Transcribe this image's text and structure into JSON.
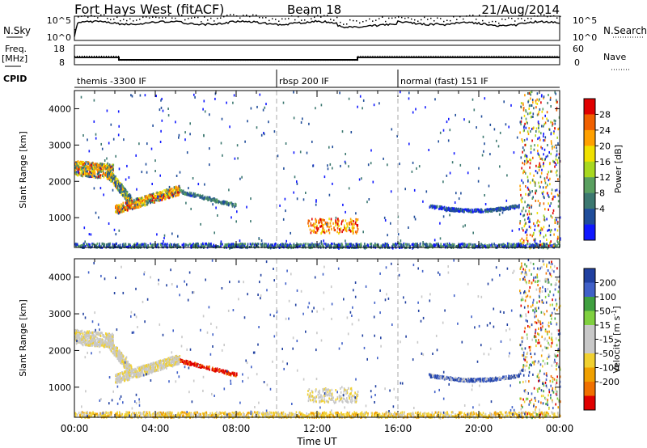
{
  "header": {
    "station": "Fort Hays West (fitACF)",
    "beam": "Beam 18",
    "date": "21/Aug/2014"
  },
  "chart_data": [
    {
      "type": "line",
      "panel": "noise",
      "left_label": "N.Sky",
      "right_label": "N.Search",
      "left_ticks": [
        "10^5",
        "10^0"
      ],
      "right_ticks": [
        "10^5",
        "10^0"
      ]
    },
    {
      "type": "line",
      "panel": "frequency",
      "left_label_top": "Freq.",
      "left_label_bottom": "[MHz]",
      "right_label": "Nave",
      "left_ticks": [
        18,
        8
      ],
      "right_ticks": [
        60,
        0
      ],
      "series": [
        {
          "name": "Freq.",
          "x": [
            0,
            2.2,
            2.2,
            14.0,
            14.0,
            24
          ],
          "y": [
            11.8,
            11.8,
            10.5,
            10.5,
            11.8,
            11.8
          ]
        },
        {
          "name": "Nave",
          "x": [
            0,
            2.2,
            2.2,
            14.0,
            14.0,
            24
          ],
          "y": [
            26,
            26,
            14,
            14,
            26,
            26
          ]
        }
      ]
    },
    {
      "type": "table",
      "panel": "cpid",
      "label": "CPID",
      "segments": [
        {
          "start": 0,
          "end": 10.0,
          "text": "themis -3300 IF"
        },
        {
          "start": 10.0,
          "end": 16.0,
          "text": "rbsp 200 IF"
        },
        {
          "start": 16.0,
          "end": 24,
          "text": "normal (fast) 151 IF"
        }
      ]
    },
    {
      "type": "heatmap",
      "panel": "power",
      "ylabel": "Slant Range [km]",
      "yticks": [
        1000,
        2000,
        3000,
        4000
      ],
      "ylim": [
        180,
        4500
      ],
      "xlim": [
        0,
        24
      ],
      "colorbar_label": "Power [dB]",
      "colorbar_ticks": [
        "28",
        "24",
        "20",
        "16",
        "12",
        "8",
        "4"
      ],
      "colorbar_colors": [
        "#e00000",
        "#f06000",
        "#ffa000",
        "#f0e000",
        "#a8d820",
        "#5aa060",
        "#3c7870",
        "#204d9a",
        "#1018ff"
      ]
    },
    {
      "type": "heatmap",
      "panel": "velocity",
      "ylabel": "Slant Range [km]",
      "yticks": [
        1000,
        2000,
        3000,
        4000
      ],
      "ylim": [
        180,
        4500
      ],
      "xlim": [
        0,
        24
      ],
      "xlabel": "Time UT",
      "xticks": [
        "00:00",
        "04:00",
        "08:00",
        "12:00",
        "16:00",
        "20:00",
        "00:00"
      ],
      "colorbar_label": "Velocity [m s",
      "colorbar_label_sup": "-1",
      "colorbar_label_end": "]",
      "colorbar_ticks": [
        "200",
        "100",
        "50",
        "15",
        "-15",
        "-50",
        "-100",
        "-200"
      ],
      "colorbar_colors": [
        "#2040a0",
        "#4060c8",
        "#40a040",
        "#80d040",
        "#c8c8c8",
        "#c8c8c8",
        "#f0d030",
        "#f0a000",
        "#f07000",
        "#e00000"
      ]
    }
  ]
}
